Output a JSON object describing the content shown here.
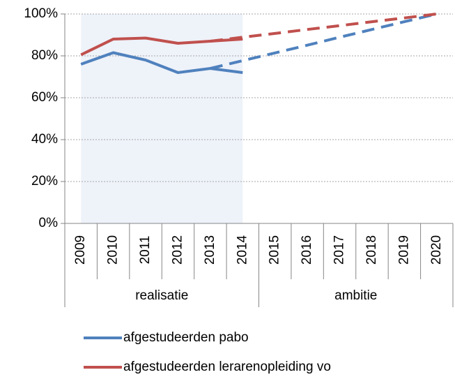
{
  "chart_data": {
    "type": "line",
    "categories": [
      "2009",
      "2010",
      "2011",
      "2012",
      "2013",
      "2014",
      "2015",
      "2016",
      "2017",
      "2018",
      "2019",
      "2020"
    ],
    "groups": [
      {
        "label": "realisatie",
        "span": 6,
        "shaded": true
      },
      {
        "label": "ambitie",
        "span": 6,
        "shaded": false
      }
    ],
    "series": [
      {
        "name": "afgestudeerden pabo",
        "color": "#4f81bd",
        "values": [
          76,
          81.5,
          78,
          72,
          74,
          72,
          null,
          null,
          null,
          null,
          null,
          null
        ],
        "target_values": [
          null,
          null,
          null,
          null,
          74,
          77.7,
          81.4,
          85.1,
          88.9,
          92.6,
          96.3,
          100
        ]
      },
      {
        "name": "afgestudeerden lerarenopleiding vo",
        "color": "#c0504d",
        "values": [
          80.5,
          88,
          88.5,
          86,
          87,
          88,
          null,
          null,
          null,
          null,
          null,
          null
        ],
        "target_values": [
          null,
          null,
          null,
          null,
          87,
          88.9,
          90.7,
          92.6,
          94.4,
          96.3,
          98.1,
          100
        ]
      }
    ],
    "ylim": [
      0,
      100
    ],
    "yticks": [
      {
        "value": 0,
        "label": "0%"
      },
      {
        "value": 20,
        "label": "20%"
      },
      {
        "value": 40,
        "label": "40%"
      },
      {
        "value": 60,
        "label": "60%"
      },
      {
        "value": 80,
        "label": "80%"
      },
      {
        "value": 100,
        "label": "100%"
      }
    ],
    "grid": true,
    "legend": "bottom",
    "shade_color": "#eef2f9"
  }
}
